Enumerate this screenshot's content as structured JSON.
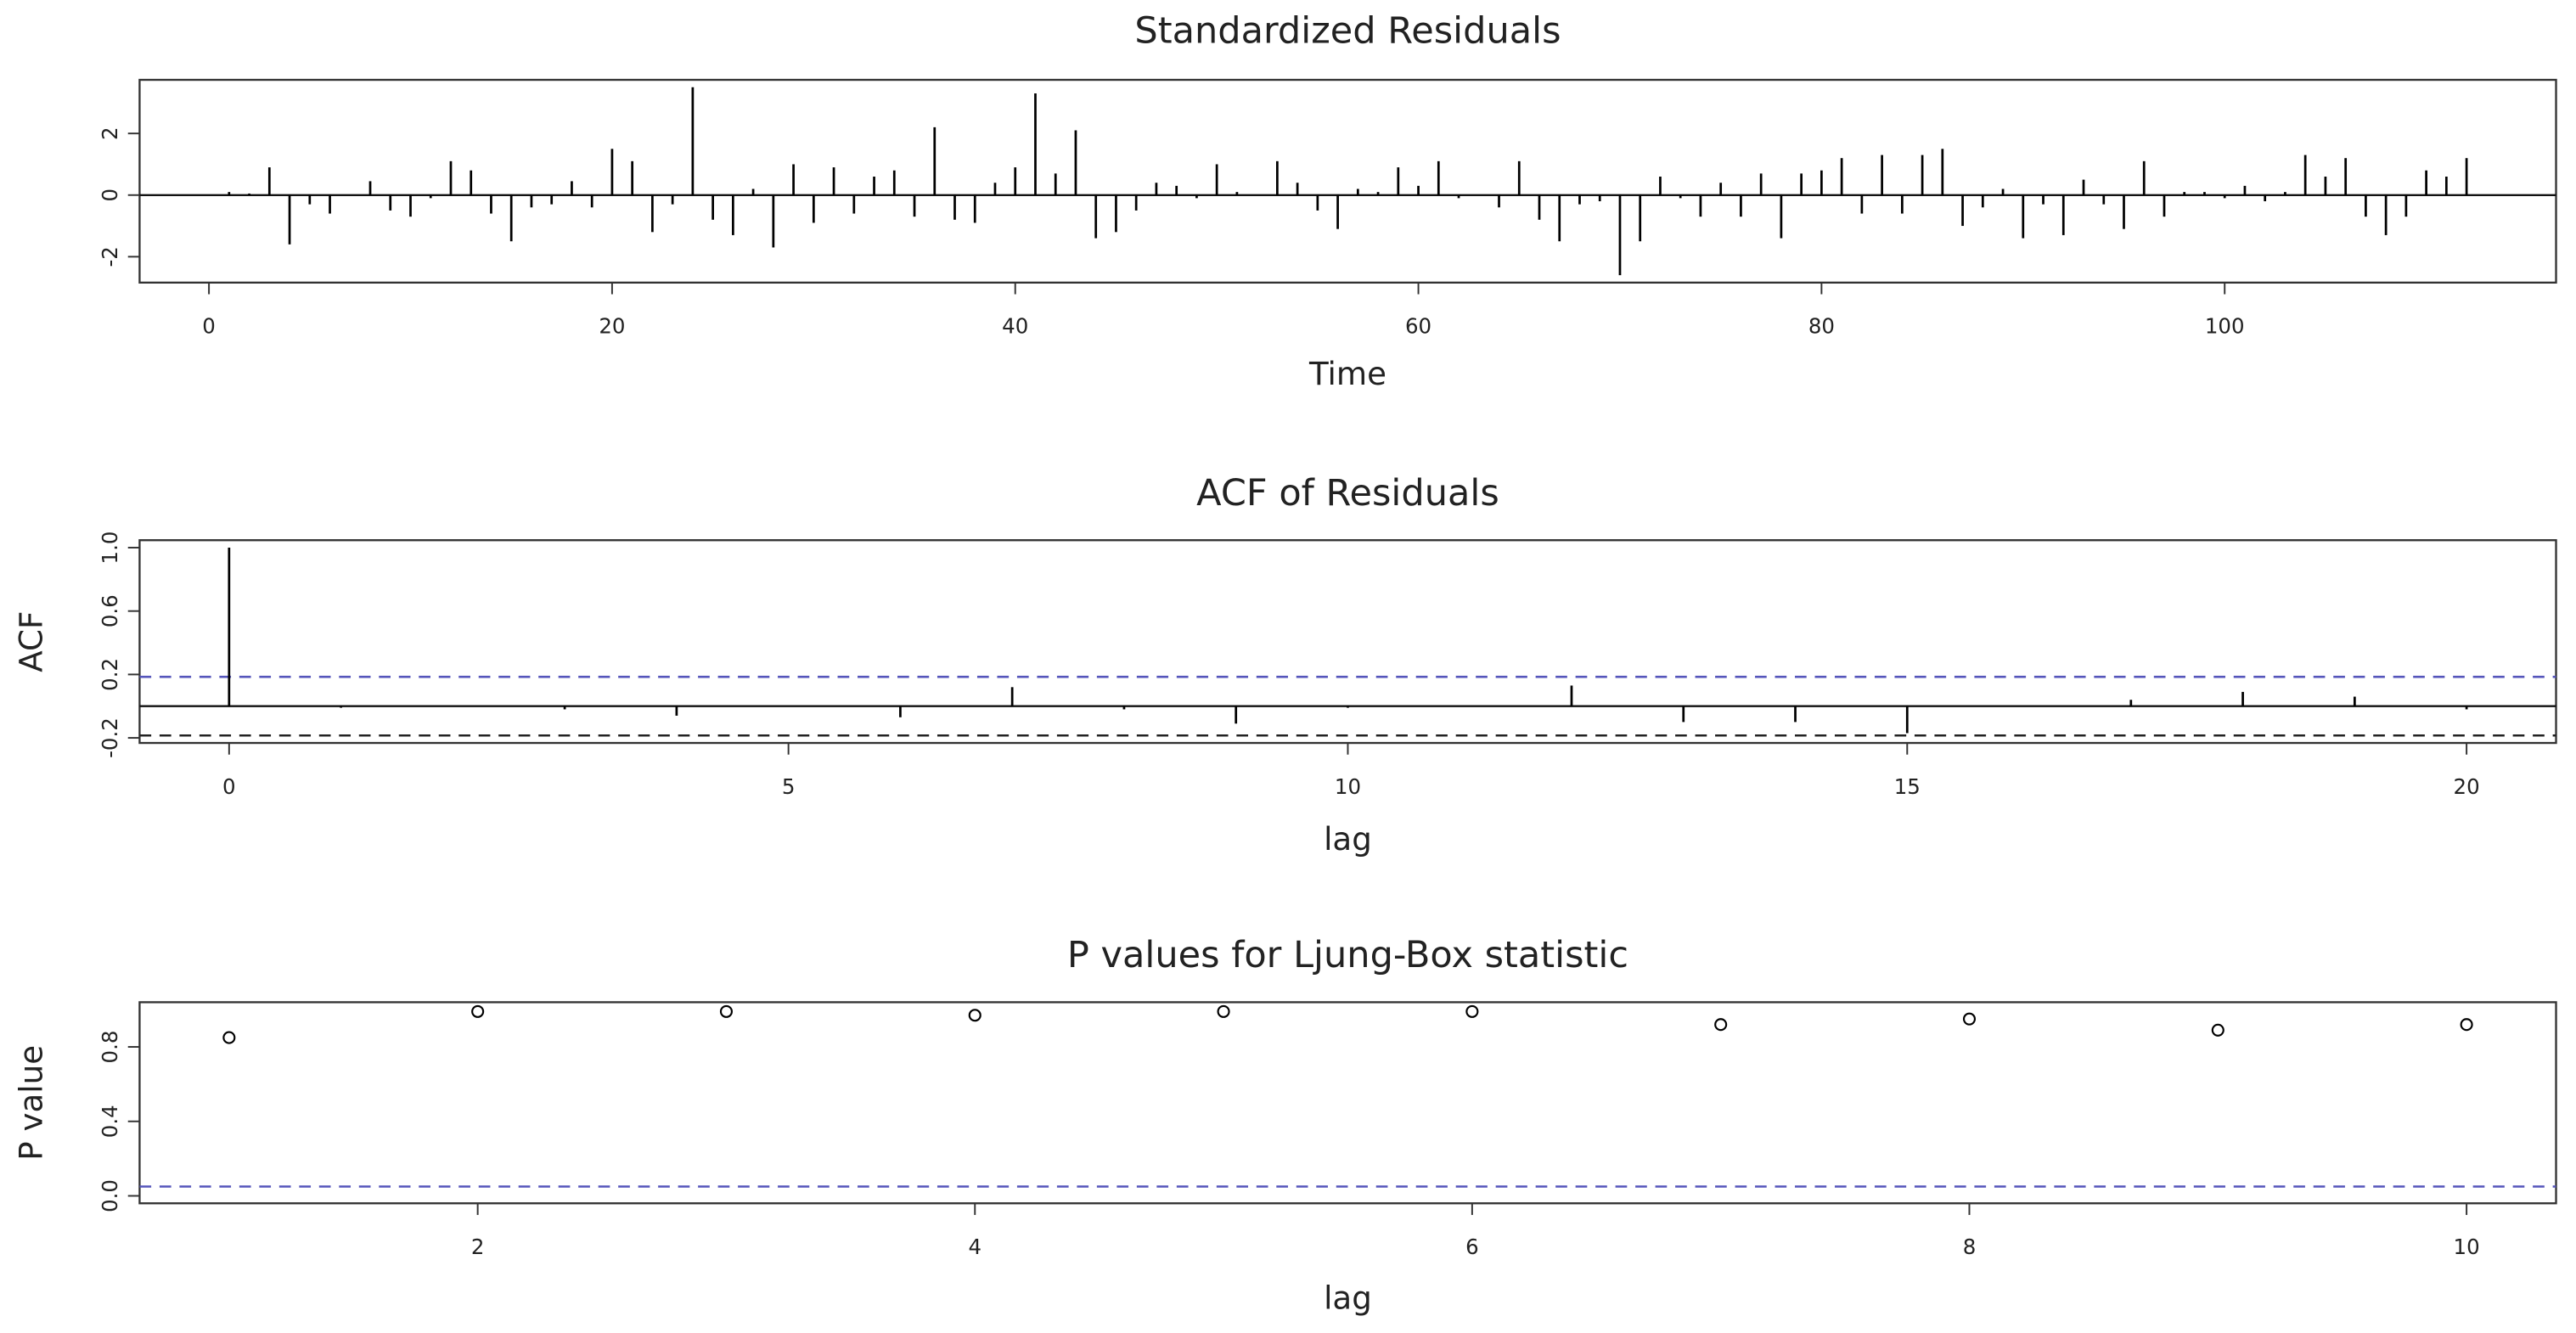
{
  "chart_data": [
    {
      "type": "needle",
      "title": "Standardized Residuals",
      "x_label": "Time",
      "color": "#000000",
      "x": [
        1,
        2,
        3,
        4,
        5,
        6,
        7,
        8,
        9,
        10,
        11,
        12,
        13,
        14,
        15,
        16,
        17,
        18,
        19,
        20,
        21,
        22,
        23,
        24,
        25,
        26,
        27,
        28,
        29,
        30,
        31,
        32,
        33,
        34,
        35,
        36,
        37,
        38,
        39,
        40,
        41,
        42,
        43,
        44,
        45,
        46,
        47,
        48,
        49,
        50,
        51,
        52,
        53,
        54,
        55,
        56,
        57,
        58,
        59,
        60,
        61,
        62,
        63,
        64,
        65,
        66,
        67,
        68,
        69,
        70,
        71,
        72,
        73,
        74,
        75,
        76,
        77,
        78,
        79,
        80,
        81,
        82,
        83,
        84,
        85,
        86,
        87,
        88,
        89,
        90,
        91,
        92,
        93,
        94,
        95,
        96,
        97,
        98,
        99,
        100,
        101,
        102,
        103,
        104,
        105,
        106,
        107,
        108,
        109,
        110,
        111,
        112
      ],
      "values": [
        0.1,
        0.05,
        0.9,
        -1.6,
        -0.3,
        -0.6,
        0,
        0.45,
        -0.5,
        -0.7,
        -0.1,
        1.1,
        0.8,
        -0.6,
        -1.5,
        -0.4,
        -0.3,
        0.45,
        -0.4,
        1.5,
        1.1,
        -1.2,
        -0.3,
        3.5,
        -0.8,
        -1.3,
        0.2,
        -1.7,
        1.0,
        -0.9,
        0.9,
        -0.6,
        0.6,
        0.8,
        -0.7,
        2.2,
        -0.8,
        -0.9,
        0.4,
        0.9,
        3.3,
        0.7,
        2.1,
        -1.4,
        -1.2,
        -0.5,
        0.4,
        0.3,
        -0.1,
        1.0,
        0.1,
        0,
        1.1,
        0.4,
        -0.5,
        -1.1,
        0.2,
        0.1,
        0.9,
        0.3,
        1.1,
        -0.1,
        0,
        -0.4,
        1.1,
        -0.8,
        -1.5,
        -0.3,
        -0.2,
        -2.6,
        -1.5,
        0.6,
        -0.1,
        -0.7,
        0.4,
        -0.7,
        0.7,
        -1.4,
        0.7,
        0.8,
        1.2,
        -0.6,
        1.3,
        -0.6,
        1.3,
        1.5,
        -1.0,
        -0.4,
        0.2,
        -1.4,
        -0.3,
        -1.3,
        0.5,
        -0.3,
        -1.1,
        1.1,
        -0.7,
        0.1,
        0.1,
        -0.1,
        0.3,
        -0.2,
        0.1,
        1.3,
        0.6,
        1.2,
        -0.7,
        -1.3,
        -0.7,
        0.8,
        0.6,
        1.2
      ],
      "xlim": [
        -3.44,
        116.44
      ],
      "xticks": [
        0,
        20,
        40,
        60,
        80,
        100
      ],
      "ylim": [
        -2.84,
        3.74
      ],
      "yticks": [
        -2,
        0,
        2
      ]
    },
    {
      "type": "needle",
      "title": "ACF of Residuals",
      "x_label": "lag",
      "y_label": "ACF",
      "color": "#000000",
      "x": [
        0,
        1,
        2,
        3,
        4,
        5,
        6,
        7,
        8,
        9,
        10,
        11,
        12,
        13,
        14,
        15,
        16,
        17,
        18,
        19,
        20
      ],
      "values": [
        1,
        -0.01,
        0,
        -0.02,
        -0.06,
        0,
        -0.07,
        0.12,
        -0.02,
        -0.11,
        -0.01,
        0,
        0.13,
        -0.1,
        -0.1,
        -0.17,
        0,
        0.04,
        0.09,
        0.06,
        -0.02
      ],
      "xlim": [
        -0.8,
        20.8
      ],
      "xticks": [
        0,
        5,
        10,
        15,
        20
      ],
      "ylim": [
        -0.232,
        1.047
      ],
      "yticks": [
        -0.2,
        0.2,
        0.6,
        {
          "value": 1,
          "label": "1.0"
        }
      ],
      "reference_lines": [
        {
          "value": 0.185,
          "color": "#5555bb",
          "dashed": true
        },
        {
          "value": -0.185,
          "color": "#222222",
          "dashed": true
        }
      ]
    },
    {
      "type": "scatter",
      "title": "P values for Ljung-Box statistic",
      "x_label": "lag",
      "y_label": "P value",
      "color": "#000000",
      "x": [
        1,
        2,
        3,
        4,
        5,
        6,
        7,
        8,
        9,
        10
      ],
      "values": [
        0.85,
        0.99,
        0.99,
        0.97,
        0.99,
        0.99,
        0.92,
        0.95,
        0.89,
        0.92
      ],
      "xlim": [
        0.64,
        10.36
      ],
      "xticks": [
        2,
        4,
        6,
        8,
        10
      ],
      "ylim": [
        -0.04,
        1.04
      ],
      "yticks": [
        {
          "value": 0,
          "label": "0.0"
        },
        0.4,
        0.8
      ],
      "reference_lines": [
        {
          "value": 0.05,
          "color": "#5555bb",
          "dashed": true
        }
      ]
    }
  ]
}
